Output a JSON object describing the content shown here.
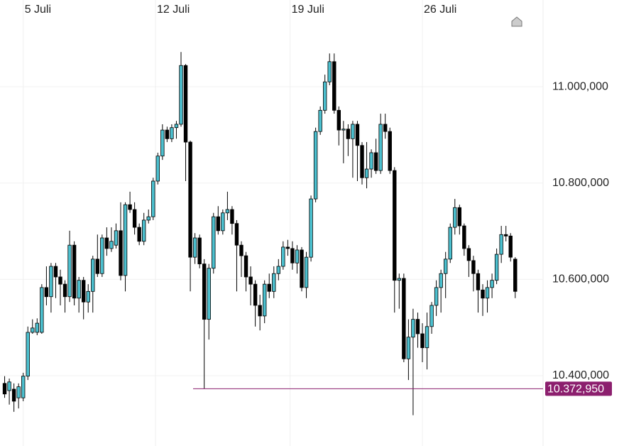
{
  "chart_data": {
    "type": "candlestick",
    "open": [
      10384000,
      10369000,
      10372000,
      10354000,
      10354000,
      10399000,
      10490000,
      10490000,
      10490000,
      10583000,
      10564000,
      10627000,
      10605000,
      10590000,
      10564000,
      10671000,
      10561000,
      10598000,
      10553000,
      10575000,
      10642000,
      10612000,
      10686000,
      10664000,
      10671000,
      10701000,
      10608000,
      10755000,
      10745000,
      10708000,
      10679000,
      10723000,
      10730000,
      10804000,
      10856000,
      10910000,
      10892000,
      10915000,
      10922000,
      11044000,
      10885000,
      10646000,
      10686000,
      10632000,
      10517000,
      10623000,
      10730000,
      10701000,
      10738000,
      10745000,
      10716000,
      10671000,
      10649000,
      10605000,
      10590000,
      10546000,
      10524000,
      10590000,
      10575000,
      10612000,
      10627000,
      10667000,
      10664000,
      10634000,
      10661000,
      10583000,
      10646000,
      10767000,
      10907000,
      10951000,
      11010000,
      11052000,
      10951000,
      10910000,
      10912000,
      10892000,
      10922000,
      10878000,
      10811000,
      10829000,
      10863000,
      10826000,
      10922000,
      10907000,
      10826000,
      10598000,
      10602000,
      10435000,
      10480000,
      10517000,
      10487000,
      10458000,
      10502000,
      10546000,
      10583000,
      10612000,
      10642000,
      10708000,
      10749000,
      10711000,
      10664000,
      10639000,
      10612000,
      10578000,
      10561000,
      10583000,
      10598000,
      10652000,
      10693000,
      10690000,
      10642000
    ],
    "high": [
      10399000,
      10394000,
      10384000,
      10384000,
      10406000,
      10502000,
      10517000,
      10519000,
      10590000,
      10627000,
      10634000,
      10634000,
      10620000,
      10598000,
      10701000,
      10679000,
      10605000,
      10605000,
      10590000,
      10649000,
      10693000,
      10693000,
      10708000,
      10708000,
      10716000,
      10760000,
      10760000,
      10782000,
      10760000,
      10716000,
      10738000,
      10745000,
      10811000,
      10863000,
      10922000,
      10917000,
      10922000,
      10929000,
      11072000,
      11047000,
      10888000,
      10696000,
      10693000,
      10642000,
      10632000,
      10738000,
      10752000,
      10745000,
      10782000,
      10752000,
      10723000,
      10679000,
      10657000,
      10627000,
      10598000,
      10568000,
      10598000,
      10612000,
      10627000,
      10642000,
      10679000,
      10682000,
      10679000,
      10671000,
      10667000,
      10657000,
      10774000,
      10915000,
      10959000,
      11025000,
      11069000,
      11069000,
      10959000,
      10929000,
      10922000,
      10929000,
      10929000,
      10885000,
      10885000,
      10870000,
      10892000,
      10944000,
      10944000,
      10915000,
      10833000,
      10612000,
      10612000,
      10517000,
      10539000,
      10531000,
      10509000,
      10531000,
      10553000,
      10598000,
      10620000,
      10657000,
      10716000,
      10767000,
      10755000,
      10716000,
      10671000,
      10649000,
      10620000,
      10590000,
      10598000,
      10612000,
      10664000,
      10711000,
      10711000,
      10696000,
      10646000
    ],
    "low": [
      10354000,
      10340000,
      10325000,
      10332000,
      10347000,
      10391000,
      10487000,
      10484000,
      10487000,
      10546000,
      10531000,
      10561000,
      10546000,
      10531000,
      10553000,
      10546000,
      10531000,
      10517000,
      10531000,
      10531000,
      10605000,
      10605000,
      10649000,
      10657000,
      10664000,
      10598000,
      10575000,
      10738000,
      10693000,
      10671000,
      10671000,
      10716000,
      10723000,
      10797000,
      10848000,
      10885000,
      10885000,
      10892000,
      10917000,
      10804000,
      10575000,
      10632000,
      10623000,
      10373000,
      10475000,
      10612000,
      10693000,
      10693000,
      10723000,
      10693000,
      10575000,
      10605000,
      10575000,
      10546000,
      10502000,
      10494000,
      10509000,
      10561000,
      10561000,
      10598000,
      10620000,
      10649000,
      10620000,
      10612000,
      10575000,
      10561000,
      10637000,
      10760000,
      10900000,
      10944000,
      11003000,
      10944000,
      10878000,
      10841000,
      10856000,
      10811000,
      10804000,
      10797000,
      10789000,
      10811000,
      10819000,
      10819000,
      10892000,
      10819000,
      10531000,
      10539000,
      10428000,
      10391000,
      10318000,
      10458000,
      10428000,
      10413000,
      10487000,
      10524000,
      10531000,
      10561000,
      10634000,
      10693000,
      10693000,
      10649000,
      10605000,
      10575000,
      10531000,
      10524000,
      10531000,
      10561000,
      10590000,
      10634000,
      10679000,
      10637000,
      10561000
    ],
    "close": [
      10362000,
      10387000,
      10347000,
      10377000,
      10399000,
      10490000,
      10499000,
      10509000,
      10583000,
      10564000,
      10627000,
      10605000,
      10590000,
      10564000,
      10671000,
      10561000,
      10598000,
      10553000,
      10575000,
      10642000,
      10612000,
      10686000,
      10664000,
      10679000,
      10701000,
      10608000,
      10755000,
      10745000,
      10708000,
      10679000,
      10723000,
      10730000,
      10804000,
      10856000,
      10910000,
      10892000,
      10915000,
      10922000,
      11044000,
      10885000,
      10646000,
      10686000,
      10632000,
      10517000,
      10623000,
      10730000,
      10701000,
      10738000,
      10745000,
      10716000,
      10671000,
      10649000,
      10605000,
      10590000,
      10546000,
      10524000,
      10590000,
      10575000,
      10612000,
      10627000,
      10667000,
      10664000,
      10634000,
      10661000,
      10583000,
      10646000,
      10767000,
      10907000,
      10951000,
      11010000,
      11052000,
      10951000,
      10910000,
      10912000,
      10892000,
      10922000,
      10878000,
      10811000,
      10829000,
      10863000,
      10826000,
      10922000,
      10907000,
      10826000,
      10598000,
      10602000,
      10435000,
      10480000,
      10517000,
      10487000,
      10458000,
      10502000,
      10546000,
      10583000,
      10612000,
      10642000,
      10708000,
      10749000,
      10711000,
      10664000,
      10639000,
      10612000,
      10578000,
      10561000,
      10583000,
      10598000,
      10652000,
      10693000,
      10690000,
      10646000,
      10575000
    ],
    "up_color": "#4cc0cf",
    "down_color": "#000000",
    "xlim": [
      -1,
      116
    ],
    "xticks": [
      {
        "value": 4,
        "label": "5 Juli"
      },
      {
        "value": 32.5,
        "label": "12 Juli"
      },
      {
        "value": 61.5,
        "label": "19 Juli"
      },
      {
        "value": 90,
        "label": "26 Juli"
      }
    ],
    "ylim": [
      10254000,
      11180000
    ],
    "yticks": [
      {
        "value": 10400000,
        "label": "10.400,000"
      },
      {
        "value": 10600000,
        "label": "10.600,000"
      },
      {
        "value": 10800000,
        "label": "10.800,000"
      },
      {
        "value": 11000000,
        "label": "11.000,000"
      }
    ],
    "grid": true,
    "price_line": {
      "value": 10372950,
      "label": "10.372,950",
      "color": "#8c1f6e"
    }
  }
}
